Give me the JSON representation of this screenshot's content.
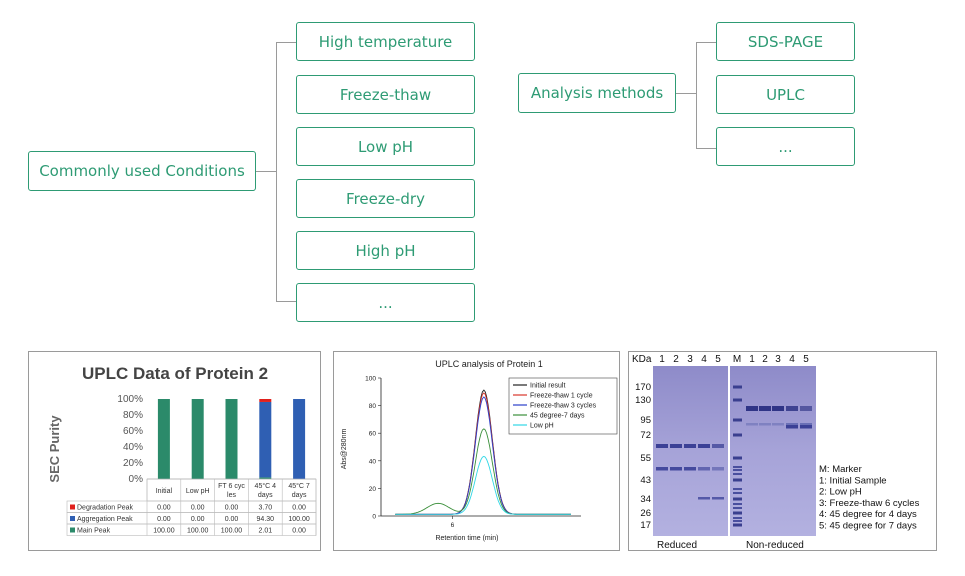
{
  "diagram": {
    "conditions_root": "Commonly used Conditions",
    "conditions": [
      "High temperature",
      "Freeze-thaw",
      "Low pH",
      "Freeze-dry",
      "High pH",
      "..."
    ],
    "methods_root": "Analysis methods",
    "methods": [
      "SDS-PAGE",
      "UPLC",
      "..."
    ]
  },
  "chart_data": [
    {
      "type": "bar",
      "title": "UPLC Data of Protein 2",
      "ylabel": "SEC Purity",
      "ylim": [
        0,
        100
      ],
      "yticks": [
        "100%",
        "80%",
        "60%",
        "40%",
        "20%",
        "0%"
      ],
      "categories": [
        "Initial",
        "Low pH",
        "FT 6 cyc les",
        "45°C 4 days",
        "45°C 7 days"
      ],
      "series": [
        {
          "name": "Degradation Peak",
          "color": "#e0201c",
          "values": [
            0.0,
            0.0,
            0.0,
            3.7,
            0.0
          ],
          "labels": [
            "0.00",
            "0.00",
            "0.00",
            "3.70",
            "0.00"
          ]
        },
        {
          "name": "Aggregation Peak",
          "color": "#2f5fb3",
          "values": [
            0.0,
            0.0,
            0.0,
            94.3,
            100.0
          ],
          "labels": [
            "0.00",
            "0.00",
            "0.00",
            "94.30",
            "100.00"
          ]
        },
        {
          "name": "Main Peak",
          "color": "#2b8a6a",
          "values": [
            100.0,
            100.0,
            100.0,
            2.01,
            0.0
          ],
          "labels": [
            "100.00",
            "100.00",
            "100.00",
            "2.01",
            "0.00"
          ]
        }
      ]
    },
    {
      "type": "line",
      "title": "UPLC analysis of Protein 1",
      "xlabel": "Retention time (min)",
      "ylabel": "Abs@280nm",
      "xlim": [
        3.5,
        10.5
      ],
      "ylim": [
        0,
        100
      ],
      "yticks": [
        "0",
        "20",
        "40",
        "60",
        "80",
        "100"
      ],
      "xticks": [
        "6"
      ],
      "series": [
        {
          "name": "Initial result",
          "color": "#222222",
          "peak": 90,
          "offset": 0
        },
        {
          "name": "Freeze-thaw 1 cycle",
          "color": "#d9342b",
          "peak": 88,
          "offset": 0
        },
        {
          "name": "Freeze-thaw 3 cycles",
          "color": "#2b3fc9",
          "peak": 85,
          "offset": 0
        },
        {
          "name": "45 degree-7 days",
          "color": "#3a8f3a",
          "peak": 62,
          "offset": 8
        },
        {
          "name": "Low pH",
          "color": "#30d7e6",
          "peak": 42,
          "offset": 0
        }
      ]
    }
  ],
  "gel": {
    "header_left": "KDa",
    "lanes_reduced": [
      "1",
      "2",
      "3",
      "4",
      "5"
    ],
    "marker_label": "M",
    "lanes_nonreduced": [
      "1",
      "2",
      "3",
      "4",
      "5"
    ],
    "mw": [
      "170",
      "130",
      "95",
      "72",
      "55",
      "43",
      "34",
      "26",
      "17"
    ],
    "reduced_label": "Reduced",
    "nonreduced_label": "Non-reduced",
    "legend": [
      "M: Marker",
      "1: Initial Sample",
      "2: Low pH",
      "3: Freeze-thaw 6 cycles",
      "4: 45 degree for 4 days",
      "5: 45 degree for 7 days"
    ]
  }
}
